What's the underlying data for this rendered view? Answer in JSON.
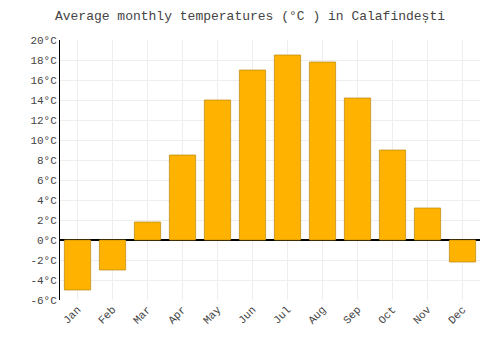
{
  "chart_data": {
    "type": "bar",
    "title": "Average monthly temperatures (°C ) in Calafindești",
    "categories": [
      "Jan",
      "Feb",
      "Mar",
      "Apr",
      "May",
      "Jun",
      "Jul",
      "Aug",
      "Sep",
      "Oct",
      "Nov",
      "Dec"
    ],
    "values": [
      -5.0,
      -3.0,
      1.8,
      8.5,
      14.0,
      17.0,
      18.5,
      17.8,
      14.2,
      9.0,
      3.2,
      -2.2
    ],
    "color": "#FFB300",
    "ylim": [
      -6,
      20
    ],
    "yticks": [
      {
        "value": -6,
        "label": "-6°C"
      },
      {
        "value": -4,
        "label": "-4°C"
      },
      {
        "value": -2,
        "label": "-2°C"
      },
      {
        "value": 0,
        "label": "0°C"
      },
      {
        "value": 2,
        "label": "2°C"
      },
      {
        "value": 4,
        "label": "4°C"
      },
      {
        "value": 6,
        "label": "6°C"
      },
      {
        "value": 8,
        "label": "8°C"
      },
      {
        "value": 10,
        "label": "10°C"
      },
      {
        "value": 12,
        "label": "12°C"
      },
      {
        "value": 14,
        "label": "14°C"
      },
      {
        "value": 16,
        "label": "16°C"
      },
      {
        "value": 18,
        "label": "18°C"
      },
      {
        "value": 20,
        "label": "20°C"
      }
    ],
    "grid": true
  }
}
